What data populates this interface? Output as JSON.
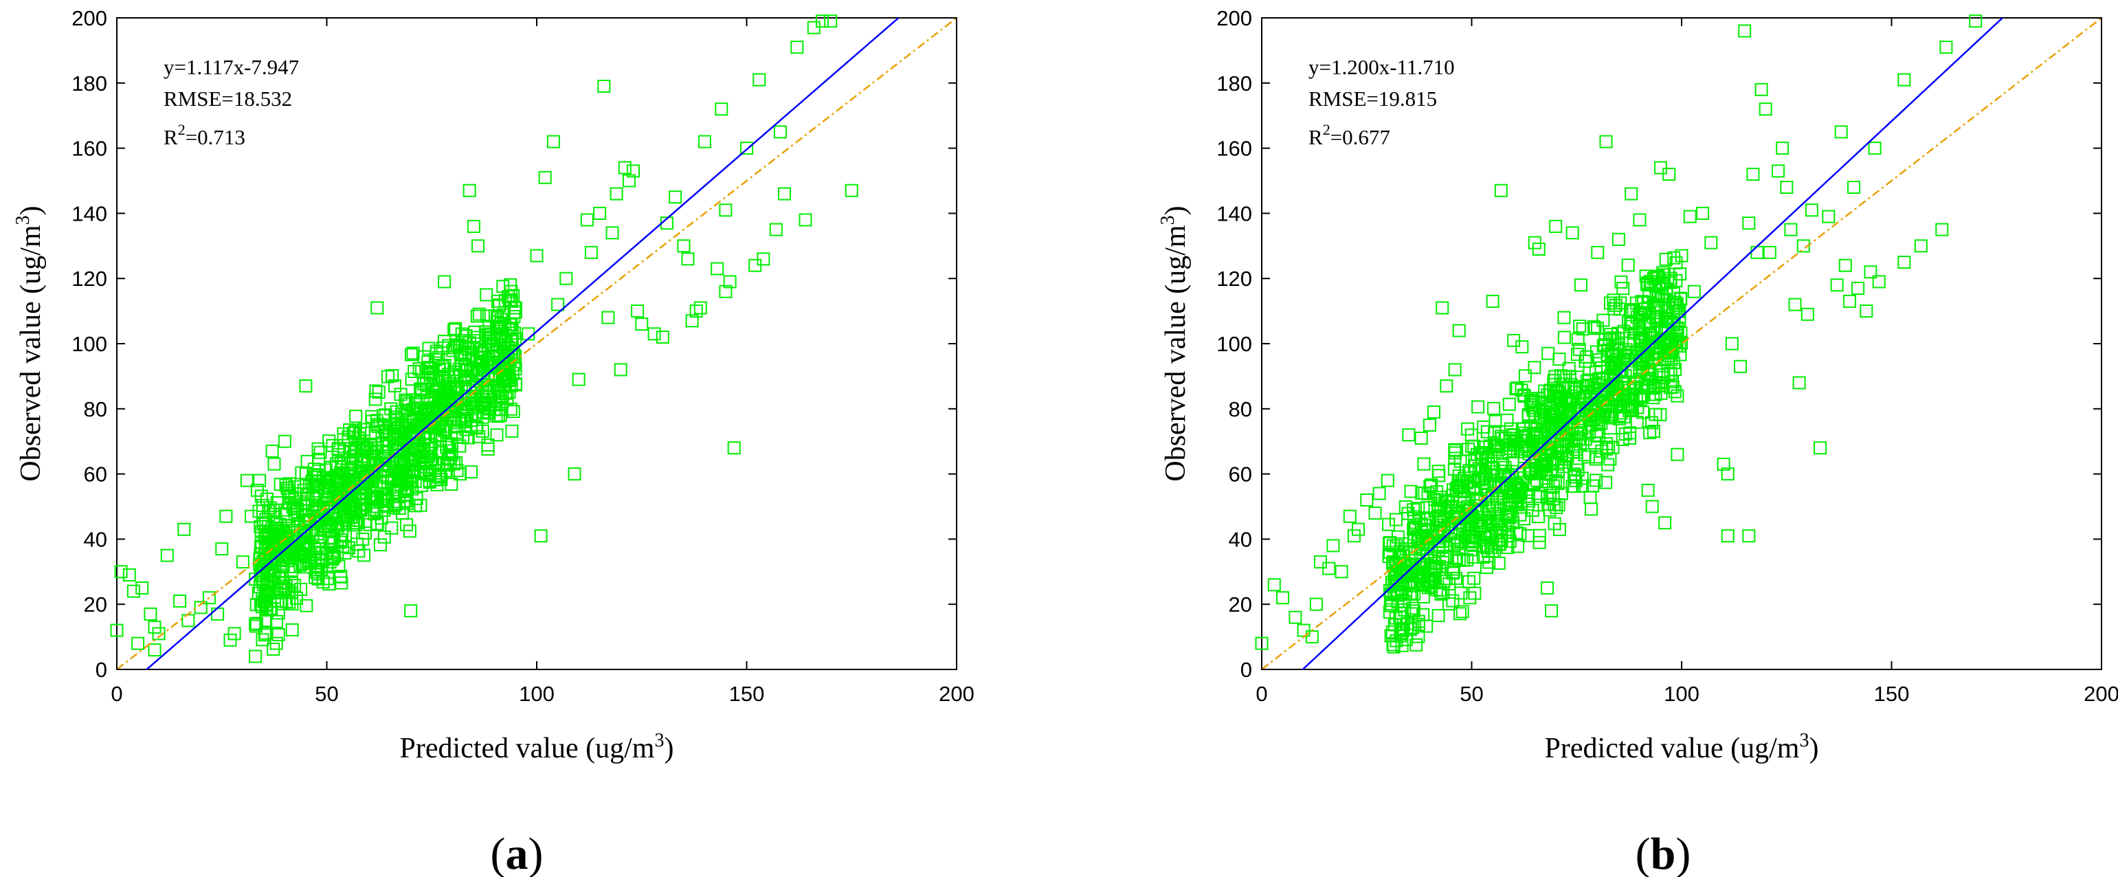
{
  "chart_data": [
    {
      "type": "scatter",
      "panel_label": "a",
      "xlabel": "Predicted value (ug/m",
      "ylabel": "Observed value (ug/m",
      "label_unit_exponent": "3",
      "label_close": ")",
      "xlim": [
        0,
        200
      ],
      "ylim": [
        0,
        200
      ],
      "x_ticks": [
        0,
        50,
        100,
        150,
        200
      ],
      "y_ticks": [
        0,
        20,
        40,
        60,
        80,
        100,
        120,
        140,
        160,
        180,
        200
      ],
      "annotations": {
        "equation": "y=1.117x-7.947",
        "rmse": "RMSE=18.532",
        "r2_base": "R",
        "r2_exponent": "2",
        "r2_value": "=0.713"
      },
      "fit": {
        "slope": 1.117,
        "intercept": -7.947,
        "color": "#0000ff"
      },
      "identity": {
        "slope": 1,
        "intercept": 0,
        "color": "#e8a000"
      },
      "marker_color": "#00ee00",
      "outliers": [
        [
          0,
          12
        ],
        [
          1,
          30
        ],
        [
          3,
          29
        ],
        [
          4,
          24
        ],
        [
          5,
          8
        ],
        [
          6,
          25
        ],
        [
          8,
          17
        ],
        [
          9,
          13
        ],
        [
          9,
          6
        ],
        [
          10,
          11
        ],
        [
          12,
          35
        ],
        [
          15,
          21
        ],
        [
          16,
          43
        ],
        [
          17,
          15
        ],
        [
          20,
          19
        ],
        [
          22,
          22
        ],
        [
          24,
          17
        ],
        [
          25,
          37
        ],
        [
          26,
          47
        ],
        [
          27,
          9
        ],
        [
          28,
          11
        ],
        [
          30,
          33
        ],
        [
          31,
          58
        ],
        [
          32,
          47
        ],
        [
          33,
          4
        ],
        [
          34,
          58
        ],
        [
          35,
          45
        ],
        [
          38,
          8
        ],
        [
          37,
          67
        ],
        [
          40,
          70
        ],
        [
          45,
          87
        ],
        [
          62,
          111
        ],
        [
          70,
          18
        ],
        [
          78,
          119
        ],
        [
          84,
          147
        ],
        [
          85,
          136
        ],
        [
          86,
          130
        ],
        [
          88,
          115
        ],
        [
          95,
          111
        ],
        [
          98,
          103
        ],
        [
          100,
          127
        ],
        [
          101,
          41
        ],
        [
          102,
          151
        ],
        [
          104,
          162
        ],
        [
          105,
          112
        ],
        [
          107,
          120
        ],
        [
          109,
          60
        ],
        [
          110,
          89
        ],
        [
          112,
          138
        ],
        [
          113,
          128
        ],
        [
          115,
          140
        ],
        [
          116,
          179
        ],
        [
          117,
          108
        ],
        [
          118,
          134
        ],
        [
          119,
          146
        ],
        [
          120,
          92
        ],
        [
          121,
          154
        ],
        [
          122,
          150
        ],
        [
          123,
          153
        ],
        [
          124,
          110
        ],
        [
          125,
          106
        ],
        [
          128,
          103
        ],
        [
          130,
          102
        ],
        [
          131,
          137
        ],
        [
          133,
          145
        ],
        [
          135,
          130
        ],
        [
          136,
          126
        ],
        [
          137,
          107
        ],
        [
          138,
          110
        ],
        [
          139,
          111
        ],
        [
          140,
          162
        ],
        [
          143,
          123
        ],
        [
          144,
          172
        ],
        [
          145,
          116
        ],
        [
          145,
          141
        ],
        [
          146,
          119
        ],
        [
          147,
          68
        ],
        [
          150,
          160
        ],
        [
          152,
          124
        ],
        [
          153,
          181
        ],
        [
          154,
          126
        ],
        [
          157,
          135
        ],
        [
          158,
          165
        ],
        [
          159,
          146
        ],
        [
          162,
          191
        ],
        [
          164,
          138
        ],
        [
          166,
          197
        ],
        [
          168,
          199
        ],
        [
          170,
          199
        ],
        [
          175,
          147
        ]
      ],
      "cloud": {
        "seed": 11,
        "count": 1200,
        "slope": 1.117,
        "intercept": -7.947,
        "x_min": 33,
        "x_max": 95,
        "noise": 17
      }
    },
    {
      "type": "scatter",
      "panel_label": "b",
      "xlabel": "Predicted value (ug/m",
      "ylabel": "Observed value (ug/m",
      "label_unit_exponent": "3",
      "label_close": ")",
      "xlim": [
        0,
        200
      ],
      "ylim": [
        0,
        200
      ],
      "x_ticks": [
        0,
        50,
        100,
        150,
        200
      ],
      "y_ticks": [
        0,
        20,
        40,
        60,
        80,
        100,
        120,
        140,
        160,
        180,
        200
      ],
      "annotations": {
        "equation": "y=1.200x-11.710",
        "rmse": "RMSE=19.815",
        "r2_base": "R",
        "r2_exponent": "2",
        "r2_value": "=0.677"
      },
      "fit": {
        "slope": 1.2,
        "intercept": -11.71,
        "color": "#0000ff"
      },
      "identity": {
        "slope": 1,
        "intercept": 0,
        "color": "#e8a000"
      },
      "marker_color": "#00ee00",
      "outliers": [
        [
          0,
          8
        ],
        [
          3,
          26
        ],
        [
          5,
          22
        ],
        [
          8,
          16
        ],
        [
          10,
          12
        ],
        [
          12,
          10
        ],
        [
          13,
          20
        ],
        [
          14,
          33
        ],
        [
          16,
          31
        ],
        [
          17,
          38
        ],
        [
          19,
          30
        ],
        [
          21,
          47
        ],
        [
          22,
          41
        ],
        [
          23,
          43
        ],
        [
          25,
          52
        ],
        [
          27,
          48
        ],
        [
          28,
          54
        ],
        [
          30,
          58
        ],
        [
          32,
          46
        ],
        [
          35,
          72
        ],
        [
          38,
          71
        ],
        [
          40,
          75
        ],
        [
          41,
          79
        ],
        [
          43,
          111
        ],
        [
          44,
          87
        ],
        [
          46,
          92
        ],
        [
          47,
          104
        ],
        [
          55,
          113
        ],
        [
          57,
          147
        ],
        [
          60,
          101
        ],
        [
          62,
          99
        ],
        [
          65,
          131
        ],
        [
          66,
          129
        ],
        [
          68,
          25
        ],
        [
          69,
          18
        ],
        [
          70,
          136
        ],
        [
          72,
          108
        ],
        [
          74,
          134
        ],
        [
          76,
          118
        ],
        [
          80,
          128
        ],
        [
          82,
          162
        ],
        [
          85,
          132
        ],
        [
          88,
          146
        ],
        [
          90,
          138
        ],
        [
          92,
          55
        ],
        [
          93,
          50
        ],
        [
          95,
          154
        ],
        [
          96,
          45
        ],
        [
          97,
          152
        ],
        [
          99,
          66
        ],
        [
          100,
          127
        ],
        [
          102,
          139
        ],
        [
          103,
          116
        ],
        [
          105,
          140
        ],
        [
          107,
          131
        ],
        [
          110,
          63
        ],
        [
          111,
          41
        ],
        [
          112,
          100
        ],
        [
          114,
          93
        ],
        [
          116,
          137
        ],
        [
          117,
          152
        ],
        [
          118,
          128
        ],
        [
          119,
          178
        ],
        [
          120,
          172
        ],
        [
          121,
          128
        ],
        [
          123,
          153
        ],
        [
          124,
          160
        ],
        [
          125,
          148
        ],
        [
          126,
          135
        ],
        [
          127,
          112
        ],
        [
          128,
          88
        ],
        [
          129,
          130
        ],
        [
          130,
          109
        ],
        [
          131,
          141
        ],
        [
          133,
          68
        ],
        [
          135,
          139
        ],
        [
          137,
          118
        ],
        [
          138,
          165
        ],
        [
          139,
          124
        ],
        [
          140,
          113
        ],
        [
          141,
          148
        ],
        [
          142,
          117
        ],
        [
          144,
          110
        ],
        [
          145,
          122
        ],
        [
          146,
          160
        ],
        [
          147,
          119
        ],
        [
          153,
          125
        ],
        [
          153,
          181
        ],
        [
          157,
          130
        ],
        [
          162,
          135
        ],
        [
          163,
          191
        ],
        [
          115,
          196
        ],
        [
          170,
          199
        ],
        [
          116,
          41
        ],
        [
          111,
          60
        ]
      ],
      "cloud": {
        "seed": 29,
        "count": 1200,
        "slope": 1.2,
        "intercept": -11.71,
        "x_min": 30,
        "x_max": 100,
        "noise": 19
      }
    }
  ]
}
